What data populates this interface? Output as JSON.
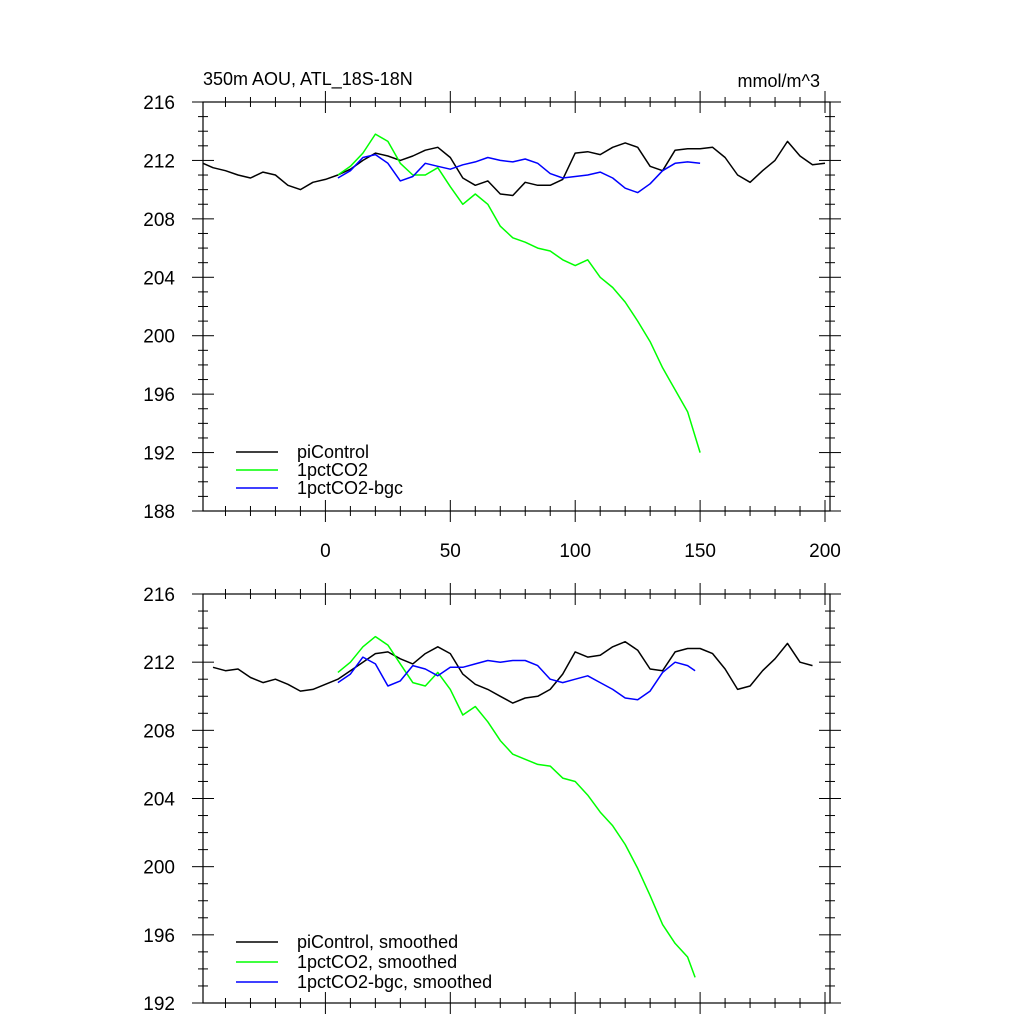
{
  "chart_data": [
    {
      "type": "line",
      "title": "350m AOU, ATL_18S-18N",
      "units": "mmol/m^3",
      "xlim": [
        -49,
        202
      ],
      "ylim": [
        188,
        216
      ],
      "xticks": [
        0,
        50,
        100,
        150,
        200
      ],
      "yticks": [
        188,
        192,
        196,
        200,
        204,
        208,
        212,
        216
      ],
      "xtick_labels": [
        "0",
        "50",
        "100",
        "150",
        "200"
      ],
      "ytick_labels": [
        "188",
        "192",
        "196",
        "200",
        "204",
        "208",
        "212",
        "216"
      ],
      "legend_position": "bottom-left",
      "series": [
        {
          "name": "piControl",
          "color": "#000000",
          "x": [
            -49,
            -45,
            -40,
            -35,
            -30,
            -25,
            -20,
            -15,
            -10,
            -5,
            0,
            5,
            10,
            15,
            20,
            25,
            30,
            35,
            40,
            45,
            50,
            55,
            60,
            65,
            70,
            75,
            80,
            85,
            90,
            95,
            100,
            105,
            110,
            115,
            120,
            125,
            130,
            135,
            140,
            145,
            150,
            155,
            160,
            165,
            170,
            175,
            180,
            185,
            190,
            195,
            200
          ],
          "y": [
            211.8,
            211.5,
            211.3,
            211.0,
            210.8,
            211.2,
            211.0,
            210.3,
            210.0,
            210.5,
            210.7,
            211.0,
            211.4,
            212.0,
            212.5,
            212.3,
            212.0,
            212.3,
            212.7,
            212.9,
            212.2,
            210.8,
            210.3,
            210.6,
            209.7,
            209.6,
            210.5,
            210.3,
            210.3,
            210.7,
            212.5,
            212.6,
            212.4,
            212.9,
            213.2,
            212.9,
            211.6,
            211.3,
            212.7,
            212.8,
            212.8,
            212.9,
            212.2,
            211.0,
            210.5,
            211.3,
            212.0,
            213.3,
            212.3,
            211.7,
            211.8
          ]
        },
        {
          "name": "1pctCO2",
          "color": "#00ff00",
          "x": [
            5,
            10,
            15,
            20,
            25,
            30,
            35,
            40,
            45,
            50,
            55,
            60,
            65,
            70,
            75,
            80,
            85,
            90,
            95,
            100,
            105,
            110,
            115,
            120,
            125,
            130,
            135,
            140,
            145,
            150
          ],
          "y": [
            211.0,
            211.6,
            212.5,
            213.8,
            213.3,
            211.8,
            211.0,
            211.0,
            211.5,
            210.2,
            209.0,
            209.7,
            209.0,
            207.5,
            206.7,
            206.4,
            206.0,
            205.8,
            205.2,
            204.8,
            205.2,
            204.0,
            203.3,
            202.3,
            201.0,
            199.6,
            197.8,
            196.3,
            194.8,
            192.0
          ]
        },
        {
          "name": "1pctCO2-bgc",
          "color": "#0000ff",
          "x": [
            5,
            10,
            15,
            20,
            25,
            30,
            35,
            40,
            45,
            50,
            55,
            60,
            65,
            70,
            75,
            80,
            85,
            90,
            95,
            100,
            105,
            110,
            115,
            120,
            125,
            130,
            135,
            140,
            145,
            150
          ],
          "y": [
            210.8,
            211.3,
            212.2,
            212.4,
            211.8,
            210.6,
            210.9,
            211.8,
            211.6,
            211.4,
            211.7,
            211.9,
            212.2,
            212.0,
            211.9,
            212.1,
            211.8,
            211.1,
            210.8,
            210.9,
            211.0,
            211.2,
            210.8,
            210.1,
            209.8,
            210.4,
            211.3,
            211.8,
            211.9,
            211.8
          ]
        }
      ]
    },
    {
      "type": "line",
      "xlim": [
        -49,
        202
      ],
      "ylim": [
        192,
        216
      ],
      "xticks": [
        0,
        50,
        100,
        150,
        200
      ],
      "yticks": [
        192,
        196,
        200,
        204,
        208,
        212,
        216
      ],
      "ytick_labels": [
        "192",
        "196",
        "200",
        "204",
        "208",
        "212",
        "216"
      ],
      "legend_position": "bottom-left",
      "series": [
        {
          "name": "piControl, smoothed",
          "color": "#000000",
          "x": [
            -45,
            -40,
            -35,
            -30,
            -25,
            -20,
            -15,
            -10,
            -5,
            0,
            5,
            10,
            15,
            20,
            25,
            30,
            35,
            40,
            45,
            50,
            55,
            60,
            65,
            70,
            75,
            80,
            85,
            90,
            95,
            100,
            105,
            110,
            115,
            120,
            125,
            130,
            135,
            140,
            145,
            150,
            155,
            160,
            165,
            170,
            175,
            180,
            185,
            190,
            195
          ],
          "y": [
            211.7,
            211.5,
            211.6,
            211.1,
            210.8,
            211.0,
            210.7,
            210.3,
            210.4,
            210.7,
            211.0,
            211.5,
            212.0,
            212.5,
            212.6,
            212.2,
            211.9,
            212.5,
            212.9,
            212.5,
            211.3,
            210.7,
            210.4,
            210.0,
            209.6,
            209.9,
            210.0,
            210.4,
            211.3,
            212.6,
            212.3,
            212.4,
            212.9,
            213.2,
            212.7,
            211.6,
            211.5,
            212.6,
            212.8,
            212.8,
            212.5,
            211.6,
            210.4,
            210.6,
            211.5,
            212.2,
            213.1,
            212.0,
            211.8
          ]
        },
        {
          "name": "1pctCO2, smoothed",
          "color": "#00ff00",
          "x": [
            5,
            10,
            15,
            20,
            25,
            30,
            35,
            40,
            45,
            50,
            55,
            60,
            65,
            70,
            75,
            80,
            85,
            90,
            95,
            100,
            105,
            110,
            115,
            120,
            125,
            130,
            135,
            140,
            145,
            148
          ],
          "y": [
            211.4,
            212.0,
            212.9,
            213.5,
            213.0,
            211.9,
            210.8,
            210.6,
            211.4,
            210.4,
            208.9,
            209.4,
            208.5,
            207.4,
            206.6,
            206.3,
            206.0,
            205.9,
            205.2,
            205.0,
            204.2,
            203.2,
            202.4,
            201.3,
            199.9,
            198.3,
            196.6,
            195.5,
            194.7,
            193.5
          ]
        },
        {
          "name": "1pctCO2-bgc, smoothed",
          "color": "#0000ff",
          "x": [
            5,
            10,
            15,
            20,
            25,
            30,
            35,
            40,
            45,
            50,
            55,
            60,
            65,
            70,
            75,
            80,
            85,
            90,
            95,
            100,
            105,
            110,
            115,
            120,
            125,
            130,
            135,
            140,
            145,
            148
          ],
          "y": [
            210.8,
            211.3,
            212.3,
            211.9,
            210.6,
            210.9,
            211.8,
            211.6,
            211.2,
            211.7,
            211.7,
            211.9,
            212.1,
            212.0,
            212.1,
            212.1,
            211.8,
            211.0,
            210.8,
            211.0,
            211.2,
            210.8,
            210.4,
            209.9,
            209.8,
            210.3,
            211.4,
            212.0,
            211.8,
            211.5
          ]
        }
      ]
    }
  ]
}
